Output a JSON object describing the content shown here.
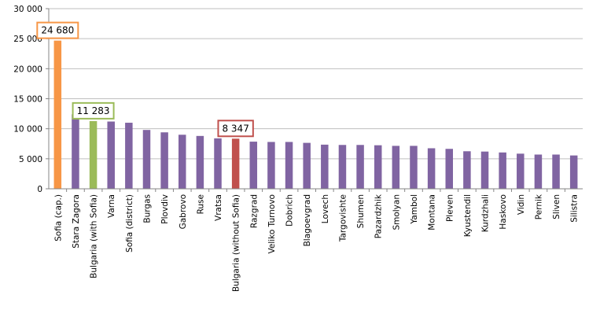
{
  "chart_data": {
    "type": "bar",
    "title": "",
    "xlabel": "",
    "ylabel": "",
    "ylim": [
      0,
      30000
    ],
    "yticks": [
      "0",
      "5 000",
      "10 000",
      "15 000",
      "20 000",
      "25 000",
      "30 000"
    ],
    "grid": "horizontal",
    "legend": "none",
    "categories": [
      "Sofia (cap.)",
      "Stara Zagora",
      "Bulgaria (with Sofia)",
      "Varna",
      "Sofia (district)",
      "Burgas",
      "Plovdiv",
      "Gabrovo",
      "Ruse",
      "Vratsa",
      "Bulgaria (without Sofia)",
      "Razgrad",
      "Veliko Turnovo",
      "Dobrich",
      "Blagoevgrad",
      "Lovech",
      "Targovishte",
      "Shumen",
      "Pazardzhik",
      "Smolyan",
      "Yambol",
      "Montana",
      "Pleven",
      "Kyustendil",
      "Kurdzhali",
      "Haskovo",
      "Vidin",
      "Pernik",
      "Sliven",
      "Silistra"
    ],
    "values": [
      24680,
      12400,
      11283,
      11200,
      11000,
      9800,
      9400,
      9000,
      8800,
      8400,
      8347,
      7850,
      7800,
      7800,
      7650,
      7350,
      7300,
      7300,
      7250,
      7150,
      7150,
      6750,
      6650,
      6250,
      6200,
      6050,
      5850,
      5700,
      5700,
      5550
    ],
    "default_color": "#8064a2",
    "highlights": [
      {
        "category": "Sofia (cap.)",
        "color": "#f79646",
        "label": "24 680"
      },
      {
        "category": "Bulgaria (with Sofia)",
        "color": "#9bbb59",
        "label": "11 283"
      },
      {
        "category": "Bulgaria (without Sofia)",
        "color": "#c0504d",
        "label": "8 347"
      }
    ]
  }
}
